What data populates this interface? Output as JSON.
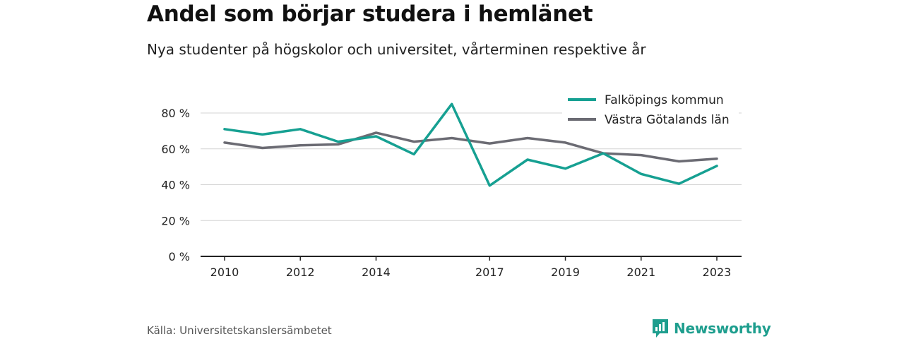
{
  "title": "Andel som börjar studera i hemlänet",
  "subtitle": "Nya studenter på högskolor och universitet, vårterminen respektive år",
  "source": "Källa: Universitetskanslersämbetet",
  "brand": {
    "name": "Newsworthy",
    "icon": "bar-chart-logo-icon",
    "color": "#1e9e8e"
  },
  "chart_data": {
    "type": "line",
    "x": [
      2010,
      2011,
      2012,
      2013,
      2014,
      2015,
      2016,
      2017,
      2018,
      2019,
      2020,
      2021,
      2022,
      2023
    ],
    "x_tick_labels": [
      "2010",
      "2012",
      "2014",
      "2017",
      "2019",
      "2021",
      "2023"
    ],
    "y_ticks": [
      0,
      20,
      40,
      60,
      80
    ],
    "y_tick_labels": [
      "0 %",
      "20 %",
      "40 %",
      "60 %",
      "80 %"
    ],
    "ylim": [
      0,
      85
    ],
    "grid": true,
    "legend_position": "top-right",
    "series": [
      {
        "name": "Falköpings kommun",
        "color": "#16a092",
        "values": [
          71,
          68,
          71,
          64,
          67,
          57,
          85,
          39.5,
          54,
          49,
          57.5,
          46,
          40.5,
          50.5
        ]
      },
      {
        "name": "Västra Götalands län",
        "color": "#6b6b73",
        "values": [
          63.5,
          60.5,
          62,
          62.5,
          69,
          64,
          66,
          63,
          66,
          63.5,
          57.5,
          56.5,
          53,
          54.5
        ]
      }
    ]
  }
}
